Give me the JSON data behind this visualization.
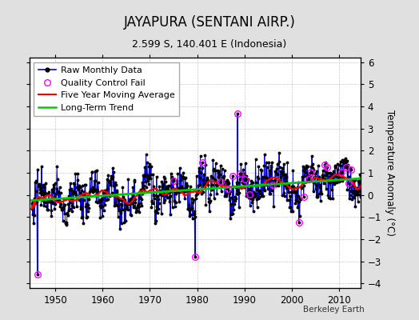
{
  "title": "JAYAPURA (SENTANI AIRP.)",
  "subtitle": "2.599 S, 140.401 E (Indonesia)",
  "ylabel": "Temperature Anomaly (°C)",
  "xlabel_credit": "Berkeley Earth",
  "ylim": [
    -4.2,
    6.2
  ],
  "xlim": [
    1944.5,
    2014.5
  ],
  "yticks": [
    -4,
    -3,
    -2,
    -1,
    0,
    1,
    2,
    3,
    4,
    5,
    6
  ],
  "xticks": [
    1950,
    1960,
    1970,
    1980,
    1990,
    2000,
    2010
  ],
  "bg_color": "#e0e0e0",
  "plot_bg_color": "#ffffff",
  "raw_line_color": "#0000dd",
  "raw_dot_color": "#000000",
  "qc_fail_color": "#ff00ff",
  "moving_avg_color": "#ff0000",
  "trend_color": "#00cc00",
  "grid_color": "#b0b0b0",
  "title_fontsize": 12,
  "subtitle_fontsize": 9,
  "axis_fontsize": 8.5,
  "legend_fontsize": 8,
  "credit_fontsize": 7.5
}
